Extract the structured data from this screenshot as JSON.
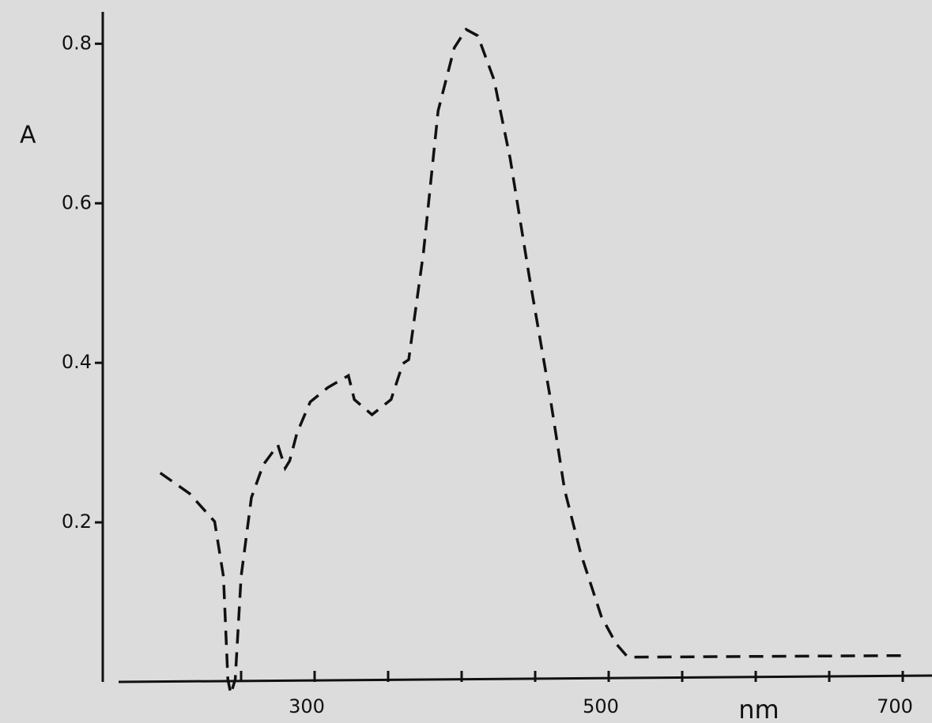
{
  "chart_data": {
    "type": "line",
    "y_label": "A",
    "x_label": "nm",
    "xlim": [
      160,
      720
    ],
    "ylim": [
      0,
      0.84
    ],
    "xticks": [
      300,
      500,
      700
    ],
    "xminorticks": [
      250,
      350,
      400,
      450,
      550,
      600,
      650
    ],
    "yticks": [
      0.2,
      0.4,
      0.6,
      0.8
    ],
    "series": [
      {
        "color": "#111111",
        "dashed": true,
        "x": [
          195,
          215,
          232,
          238,
          241,
          243,
          246,
          250,
          257,
          265,
          275,
          280,
          283,
          288,
          297,
          309,
          323,
          327,
          339,
          352,
          360,
          364,
          374,
          384,
          395,
          403,
          411,
          422,
          433,
          446,
          460,
          470,
          481,
          495,
          505,
          513,
          699
        ],
        "values": [
          0.262,
          0.236,
          0.201,
          0.132,
          0.003,
          -0.015,
          0.003,
          0.132,
          0.231,
          0.272,
          0.297,
          0.268,
          0.277,
          0.312,
          0.351,
          0.369,
          0.384,
          0.354,
          0.335,
          0.354,
          0.399,
          0.404,
          0.538,
          0.716,
          0.795,
          0.818,
          0.81,
          0.755,
          0.656,
          0.508,
          0.359,
          0.241,
          0.161,
          0.082,
          0.048,
          0.031,
          0.033
        ]
      }
    ]
  }
}
